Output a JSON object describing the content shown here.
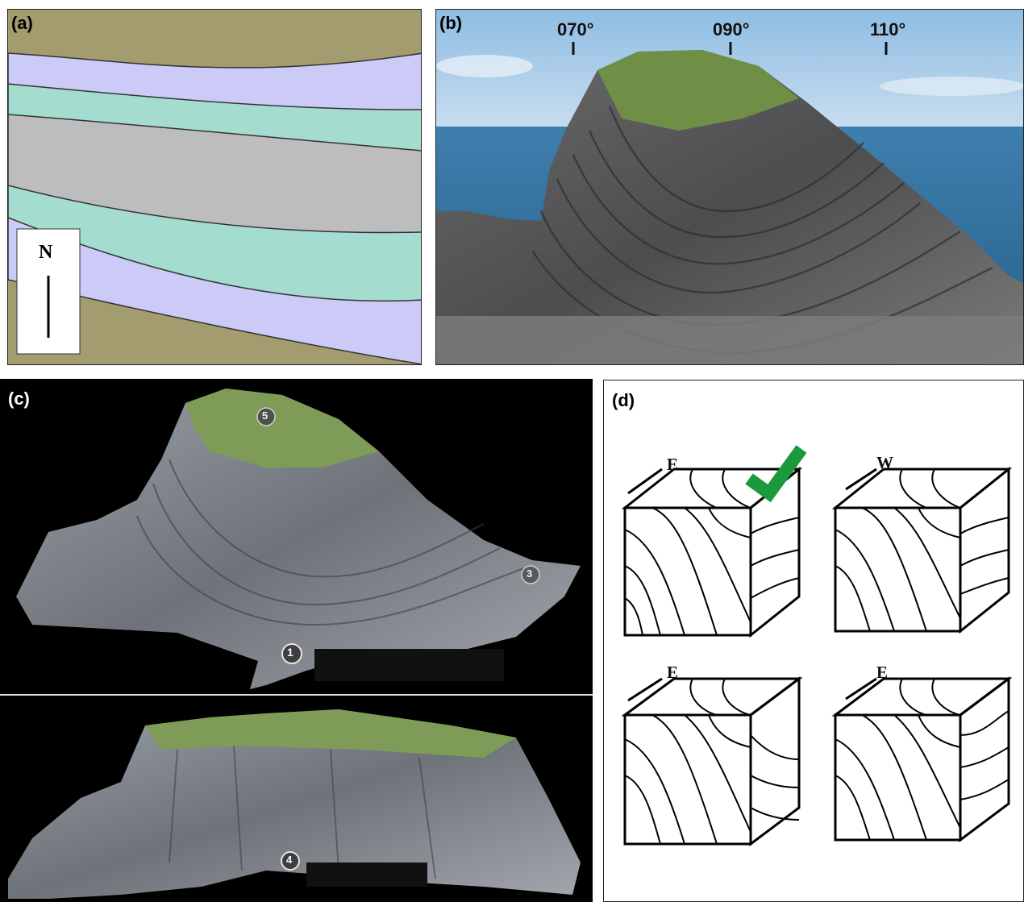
{
  "panel_a": {
    "label": "(a)",
    "north_label": "N",
    "colors": {
      "olive": "#a39c6e",
      "lavender": "#cccaf6",
      "teal": "#a4dccf",
      "gray": "#bebdbe"
    }
  },
  "panel_b": {
    "label": "(b)",
    "bearings": [
      "070°",
      "090°",
      "110°"
    ]
  },
  "panel_c": {
    "label": "(c)",
    "markers": [
      "5",
      "1",
      "3",
      "4"
    ]
  },
  "panel_d": {
    "label": "(d)",
    "cubes": [
      {
        "direction": "E",
        "correct": true
      },
      {
        "direction": "W",
        "correct": false
      },
      {
        "direction": "E",
        "correct": false
      },
      {
        "direction": "E",
        "correct": false
      }
    ],
    "check_color": "#1a9a3a"
  }
}
